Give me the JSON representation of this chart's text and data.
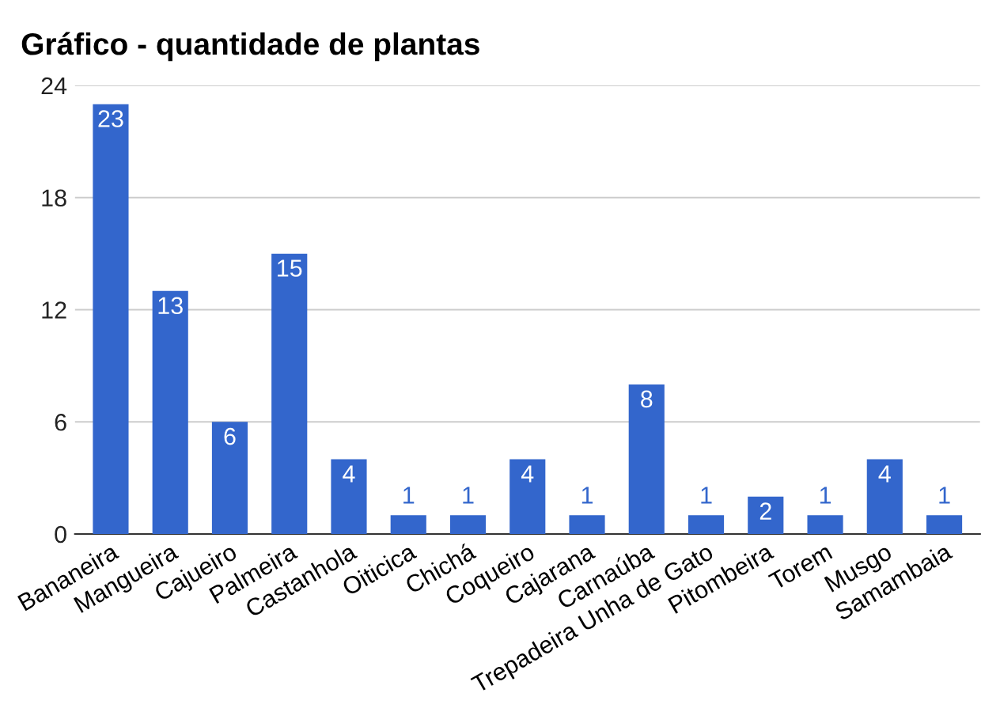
{
  "chart_data": {
    "type": "bar",
    "title": "Gráfico - quantidade de plantas",
    "categories": [
      "Bananeira",
      "Mangueira",
      "Cajueiro",
      "Palmeira",
      "Castanhola",
      "Oiticica",
      "Chichá",
      "Coqueiro",
      "Cajarana",
      "Carnaúba",
      "Trepadeira Unha de Gato",
      "Pitombeira",
      "Torem",
      "Musgo",
      "Samambaia"
    ],
    "values": [
      23,
      13,
      6,
      15,
      4,
      1,
      1,
      4,
      1,
      8,
      1,
      2,
      1,
      4,
      1
    ],
    "color": "#3366cc",
    "ylim": [
      0,
      24
    ],
    "yticks": [
      0,
      6,
      12,
      18,
      24
    ],
    "grid": "y",
    "data_labels": true
  }
}
